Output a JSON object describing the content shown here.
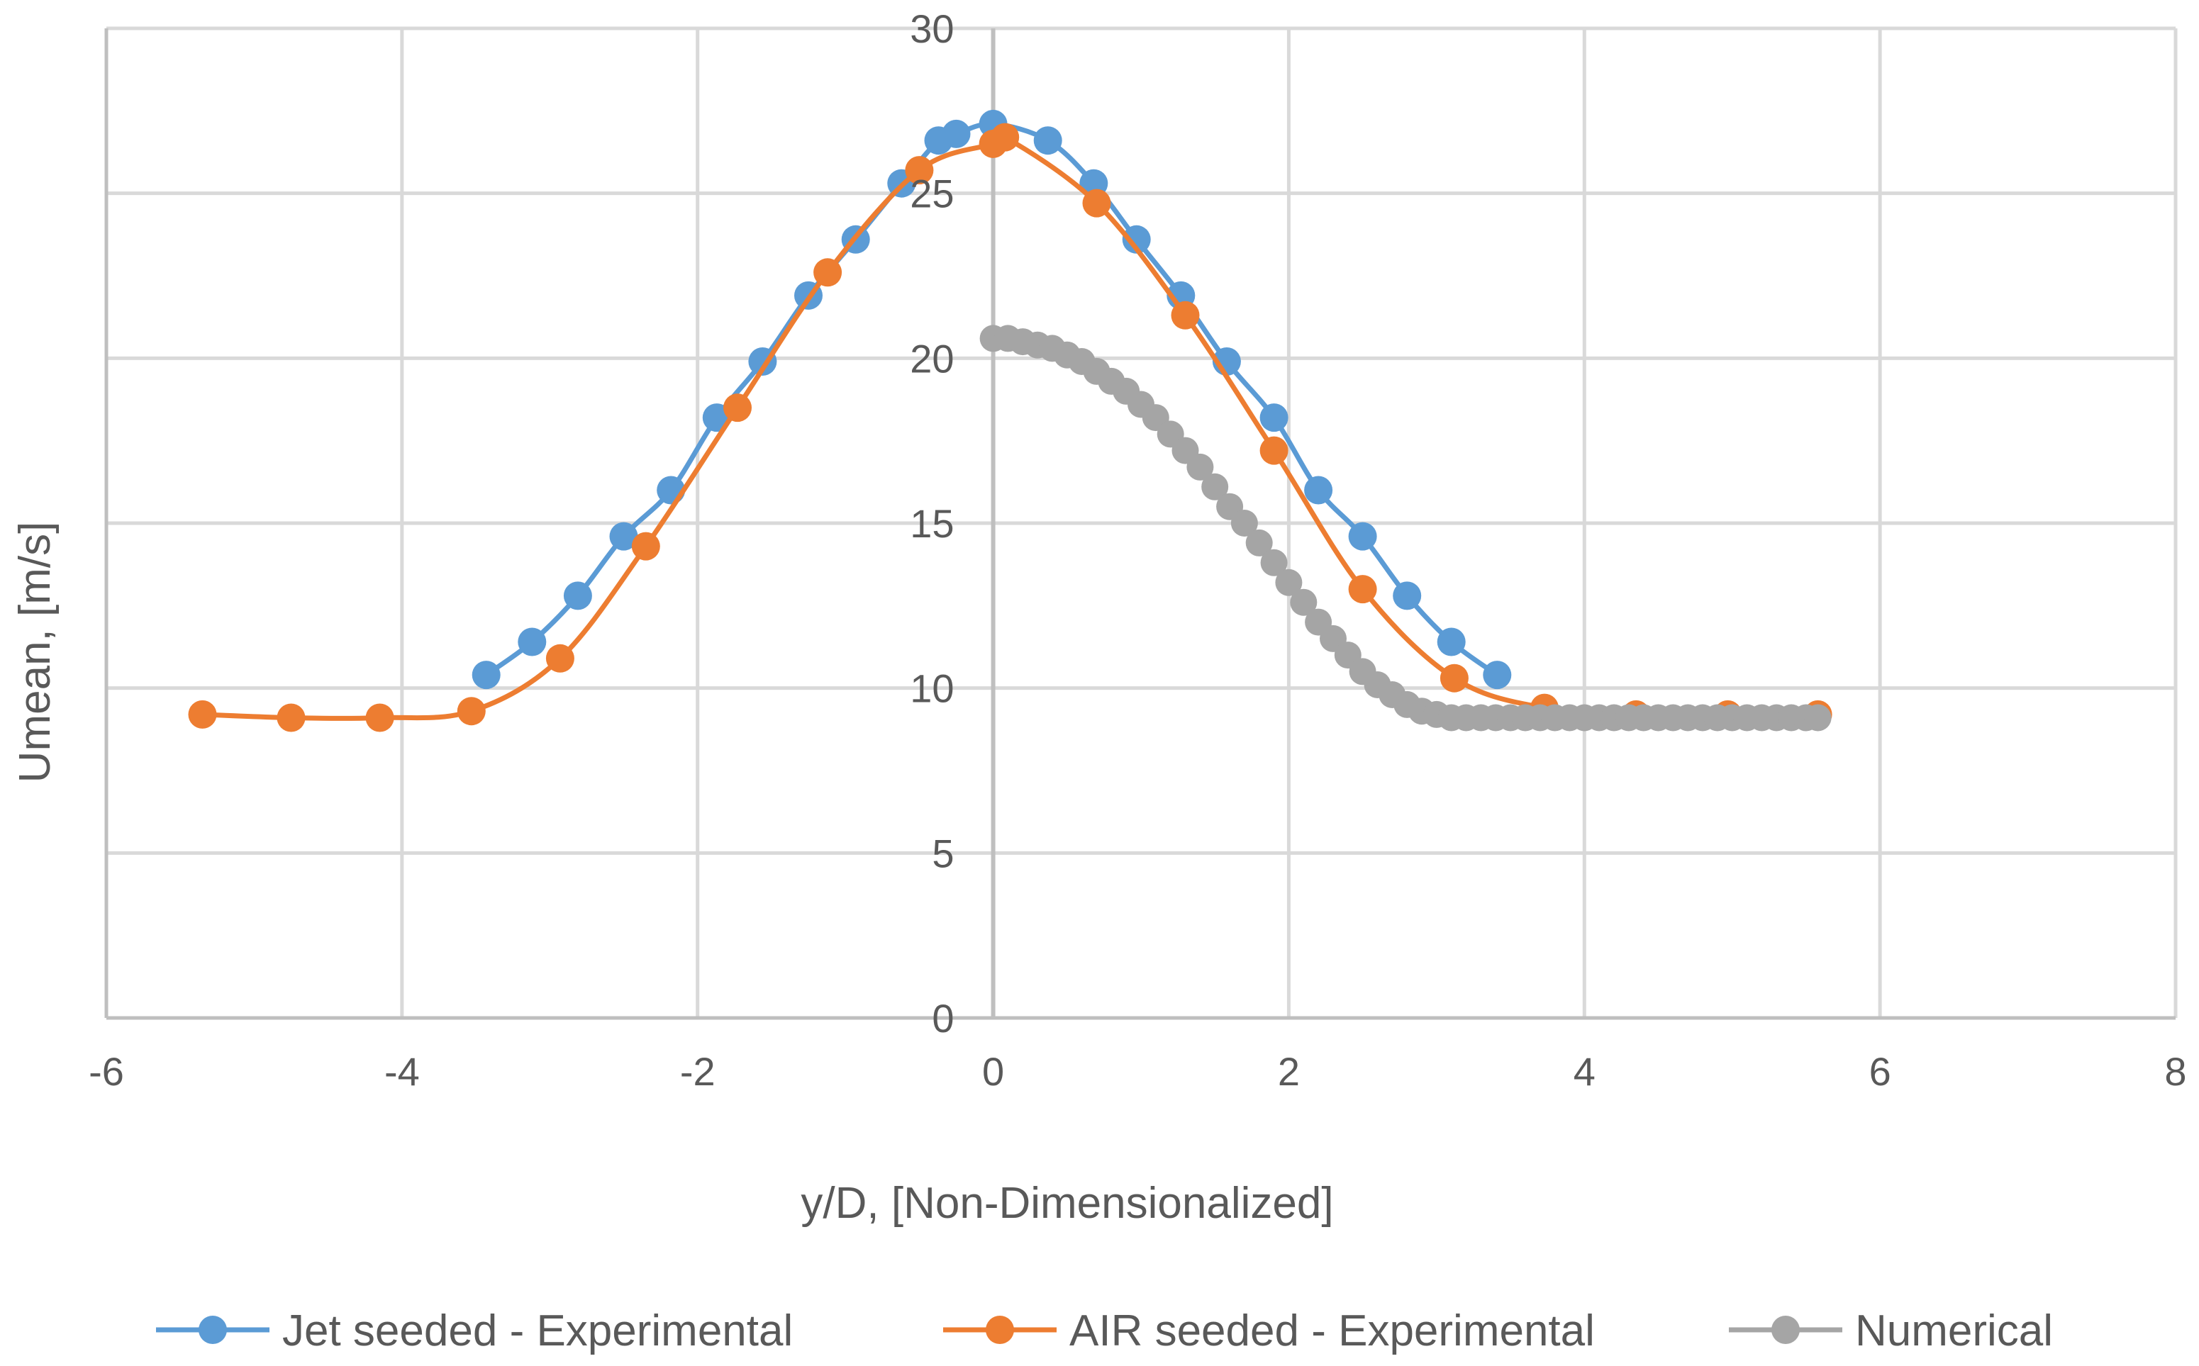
{
  "chart_data": {
    "type": "scatter",
    "title": "",
    "xlabel": "y/D, [Non-Dimensionalized]",
    "ylabel": "Umean, [m/s]",
    "xlim": [
      -6,
      8
    ],
    "ylim": [
      0,
      30
    ],
    "xticks": [
      -6,
      -4,
      -2,
      0,
      2,
      4,
      6,
      8
    ],
    "yticks": [
      0,
      5,
      10,
      15,
      20,
      25,
      30
    ],
    "xtick_labels": [
      "-6",
      "-4",
      "-2",
      "0",
      "2",
      "4",
      "6",
      "8"
    ],
    "ytick_labels": [
      "0",
      "5",
      "10",
      "15",
      "20",
      "25",
      "30"
    ],
    "grid": true,
    "legend_position": "bottom",
    "series": [
      {
        "name": "Jet seeded - Experimental",
        "color": "#5b9bd5",
        "x": [
          -3.43,
          -3.12,
          -2.81,
          -2.5,
          -2.18,
          -1.87,
          -1.56,
          -1.25,
          -0.93,
          -0.62,
          -0.37,
          -0.25,
          0.0,
          0.37,
          0.68,
          0.97,
          1.27,
          1.58,
          1.9,
          2.2,
          2.5,
          2.8,
          3.1,
          3.41
        ],
        "y": [
          10.4,
          11.4,
          12.8,
          14.6,
          16.0,
          18.2,
          19.9,
          21.9,
          23.6,
          25.3,
          26.6,
          26.8,
          27.1,
          26.6,
          25.3,
          23.6,
          21.9,
          19.9,
          18.2,
          16.0,
          14.6,
          12.8,
          11.4,
          10.4
        ]
      },
      {
        "name": "AIR seeded - Experimental",
        "color": "#ed7d31",
        "x": [
          -5.35,
          -4.75,
          -4.15,
          -3.53,
          -2.93,
          -2.35,
          -1.73,
          -1.12,
          -0.5,
          0.0,
          0.08,
          0.7,
          1.3,
          1.9,
          2.5,
          3.12,
          3.73,
          4.35,
          4.97,
          5.58
        ],
        "y": [
          9.2,
          9.1,
          9.1,
          9.3,
          10.9,
          14.3,
          18.5,
          22.6,
          25.7,
          26.5,
          26.7,
          24.7,
          21.3,
          17.2,
          13.0,
          10.3,
          9.4,
          9.2,
          9.2,
          9.2
        ]
      },
      {
        "name": "Numerical",
        "color": "#a5a5a5",
        "x": [
          0.0,
          0.1,
          0.2,
          0.3,
          0.4,
          0.5,
          0.6,
          0.7,
          0.8,
          0.9,
          1.0,
          1.1,
          1.2,
          1.3,
          1.4,
          1.5,
          1.6,
          1.7,
          1.8,
          1.9,
          2.0,
          2.1,
          2.2,
          2.3,
          2.4,
          2.5,
          2.6,
          2.7,
          2.8,
          2.9,
          3.0,
          3.1,
          3.2,
          3.3,
          3.4,
          3.5,
          3.6,
          3.7,
          3.8,
          3.9,
          4.0,
          4.1,
          4.2,
          4.3,
          4.4,
          4.5,
          4.6,
          4.7,
          4.8,
          4.9,
          5.0,
          5.1,
          5.2,
          5.3,
          5.4,
          5.5,
          5.58
        ],
        "y": [
          20.6,
          20.6,
          20.5,
          20.4,
          20.3,
          20.1,
          19.9,
          19.6,
          19.3,
          19.0,
          18.6,
          18.2,
          17.7,
          17.2,
          16.7,
          16.1,
          15.5,
          15.0,
          14.4,
          13.8,
          13.2,
          12.6,
          12.0,
          11.5,
          11.0,
          10.5,
          10.1,
          9.8,
          9.5,
          9.3,
          9.2,
          9.1,
          9.1,
          9.1,
          9.1,
          9.1,
          9.1,
          9.1,
          9.1,
          9.1,
          9.1,
          9.1,
          9.1,
          9.1,
          9.1,
          9.1,
          9.1,
          9.1,
          9.1,
          9.1,
          9.1,
          9.1,
          9.1,
          9.1,
          9.1,
          9.1,
          9.1
        ]
      }
    ]
  }
}
